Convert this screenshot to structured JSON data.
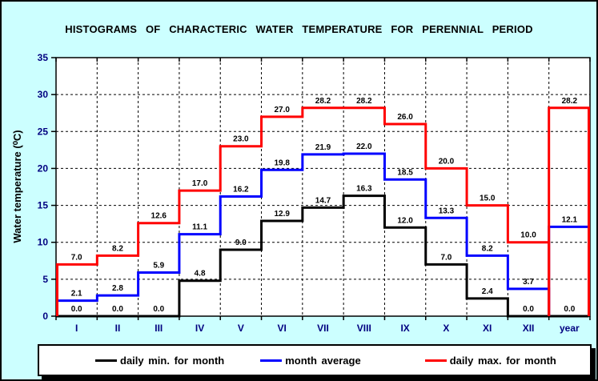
{
  "title": "HISTOGRAMS OF CHARACTERIC WATER TEMPERATURE FOR PERENNIAL PERIOD",
  "colors": {
    "background": "#ccffff",
    "plot_background": "#ffffff",
    "axis": "#000000",
    "tick_label": "#000080",
    "grid": "#000000",
    "value_label": "#000000"
  },
  "chart_data": {
    "type": "line",
    "subtype": "step-histogram",
    "title": "HISTOGRAMS OF CHARACTERIC WATER TEMPERATURE FOR PERENNIAL PERIOD",
    "xlabel": "",
    "ylabel": "Water temperature (⁰C)",
    "ylim": [
      0,
      35
    ],
    "yticks": [
      0,
      5,
      10,
      15,
      20,
      25,
      30,
      35
    ],
    "grid": "dashed",
    "legend_position": "bottom",
    "categories": [
      "I",
      "II",
      "III",
      "IV",
      "V",
      "VI",
      "VII",
      "VIII",
      "IX",
      "X",
      "XI",
      "XII",
      "year"
    ],
    "series": [
      {
        "name": "daily min. for month",
        "color": "#000000",
        "values": [
          0.0,
          0.0,
          0.0,
          4.8,
          9.0,
          12.9,
          14.7,
          16.3,
          12.0,
          7.0,
          2.4,
          0.0,
          0.0
        ]
      },
      {
        "name": "month average",
        "color": "#0000ff",
        "values": [
          2.1,
          2.8,
          5.9,
          11.1,
          16.2,
          19.8,
          21.9,
          22.0,
          18.5,
          13.3,
          8.2,
          3.7,
          12.1
        ]
      },
      {
        "name": "daily max. for month",
        "color": "#ff0000",
        "values": [
          7.0,
          8.2,
          12.6,
          17.0,
          23.0,
          27.0,
          28.2,
          28.2,
          26.0,
          20.0,
          15.0,
          10.0,
          28.2
        ]
      }
    ]
  },
  "legend": {
    "items": [
      {
        "label": "daily min. for month"
      },
      {
        "label": "month average"
      },
      {
        "label": "daily max. for month"
      }
    ]
  }
}
